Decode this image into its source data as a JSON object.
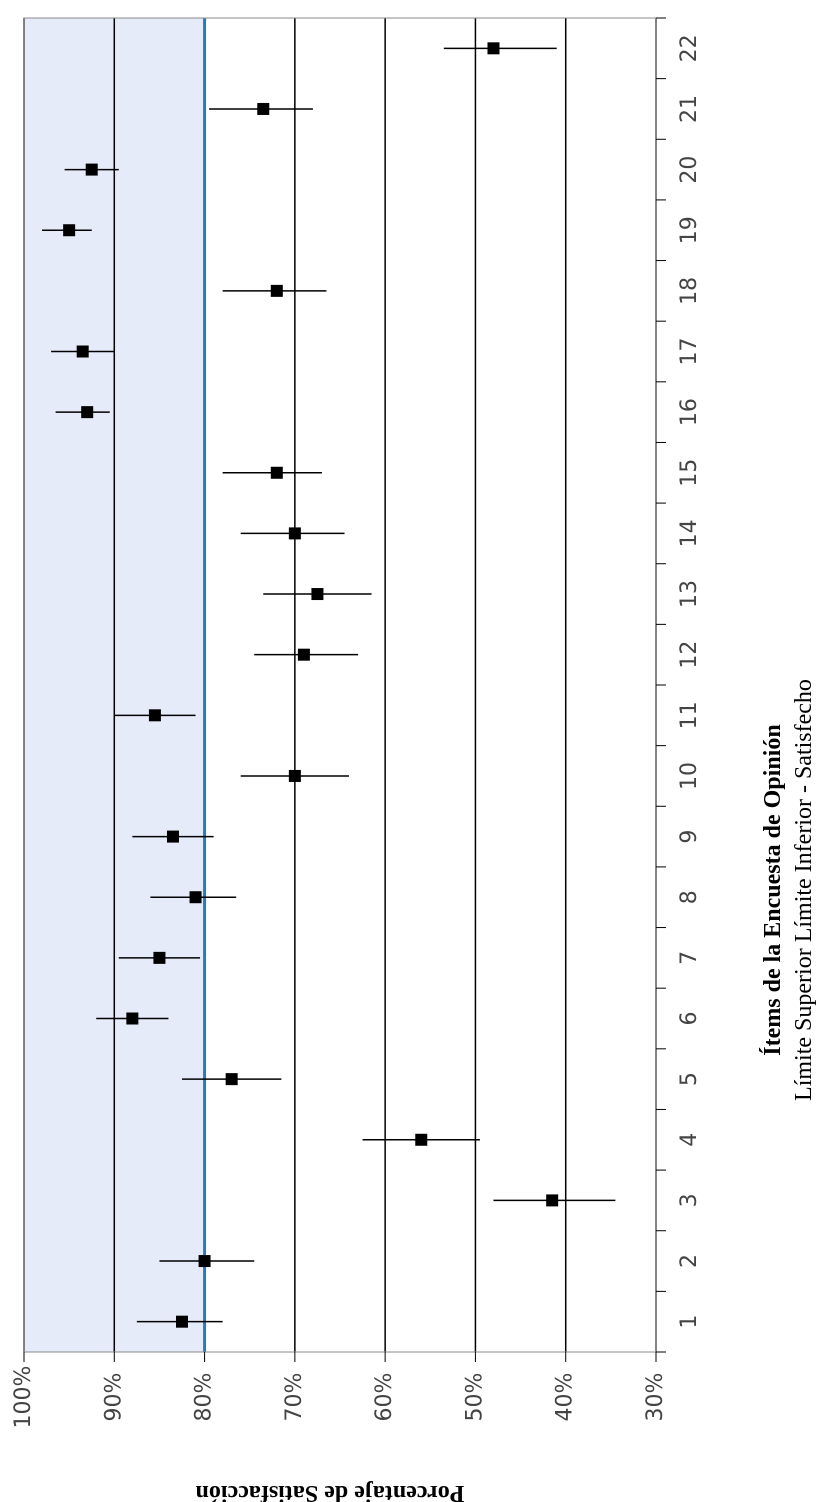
{
  "chart_data": {
    "type": "scatter",
    "orientation": "rotated",
    "categories": [
      "1",
      "2",
      "3",
      "4",
      "5",
      "6",
      "7",
      "8",
      "9",
      "10",
      "11",
      "12",
      "13",
      "14",
      "15",
      "16",
      "17",
      "18",
      "19",
      "20",
      "21",
      "22"
    ],
    "series": [
      {
        "values": [
          82.5,
          80.0,
          41.5,
          56.0,
          77.0,
          88.0,
          85.0,
          81.0,
          83.5,
          70.0,
          85.5,
          69.0,
          67.5,
          70.0,
          72.0,
          93.0,
          93.5,
          72.0,
          95.0,
          92.5,
          73.5,
          48.0
        ],
        "lower": [
          78.0,
          74.5,
          34.5,
          49.5,
          71.5,
          84.0,
          80.5,
          76.5,
          79.0,
          64.0,
          81.0,
          63.0,
          61.5,
          64.5,
          67.0,
          90.5,
          90.0,
          66.5,
          92.5,
          89.5,
          68.0,
          41.0
        ],
        "upper": [
          87.5,
          85.0,
          48.0,
          62.5,
          82.5,
          92.0,
          89.5,
          86.0,
          88.0,
          76.0,
          90.0,
          74.5,
          73.5,
          76.0,
          78.0,
          96.5,
          97.0,
          78.0,
          98.0,
          95.5,
          79.5,
          53.5
        ]
      }
    ],
    "ylim": [
      30,
      100
    ],
    "yticks": [
      "100%",
      "90%",
      "80%",
      "70%",
      "60%",
      "50%",
      "40%",
      "30%"
    ],
    "reference_line": 80,
    "shaded_region": [
      80,
      100
    ],
    "xlabel": "Ítems de la Encuesta de Opinión",
    "subtitle": "Límite Superior  Límite Inferior  - Satisfecho",
    "ylabel": "Porcentaje de Satisfacción",
    "colors": {
      "shade": "#e6ebfa",
      "reference": "#2a7ab8",
      "marker": "#000000",
      "grid": "#000000"
    }
  }
}
